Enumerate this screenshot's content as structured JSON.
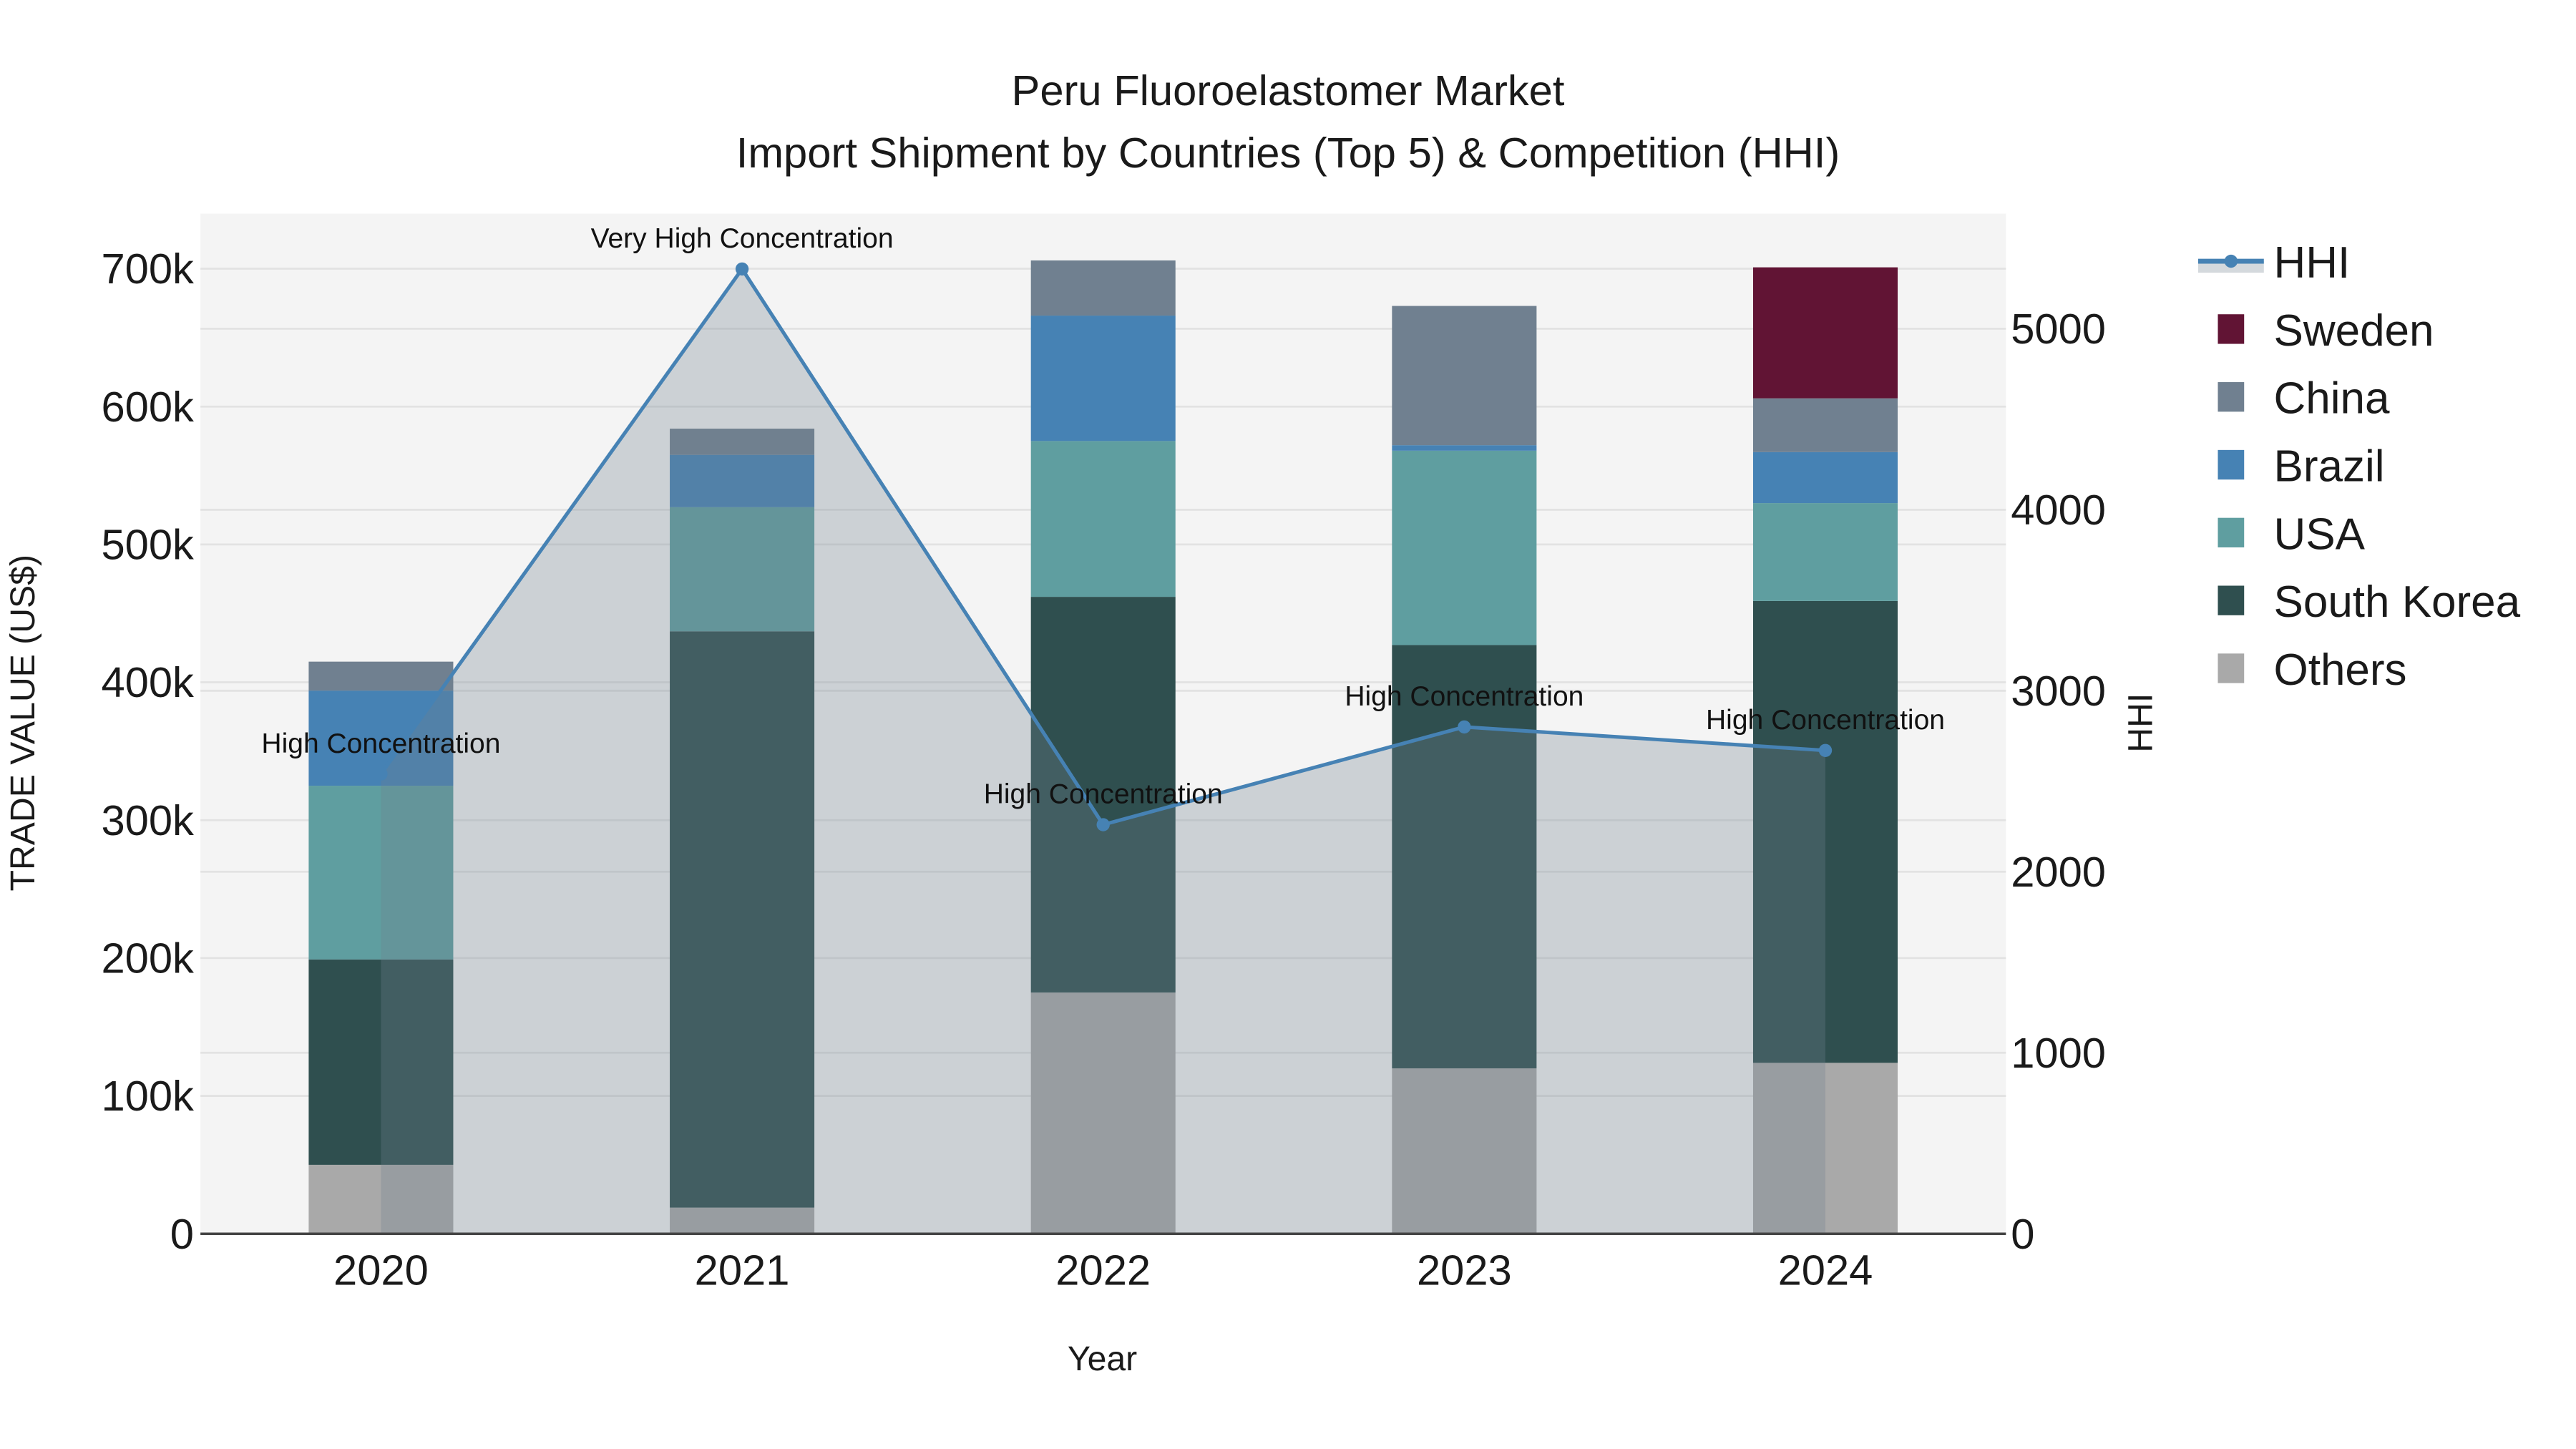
{
  "chart_data": {
    "type": "bar",
    "stacked": true,
    "title": "Peru Fluoroelastomer Market",
    "subtitle": "Import Shipment by Countries (Top 5) & Competition (HHI)",
    "xlabel": "Year",
    "ylabel": "TRADE VALUE (US$)",
    "y2label": "HHI",
    "categories": [
      "2020",
      "2021",
      "2022",
      "2023",
      "2024"
    ],
    "ylim": [
      0,
      740000
    ],
    "y_ticks": [
      0,
      100000,
      200000,
      300000,
      400000,
      500000,
      600000,
      700000
    ],
    "y_tick_labels": [
      "0",
      "100k",
      "200k",
      "300k",
      "400k",
      "500k",
      "600k",
      "700k"
    ],
    "y2lim": [
      0,
      5636
    ],
    "y2_ticks": [
      0,
      1000,
      2000,
      3000,
      4000,
      5000
    ],
    "y2_tick_labels": [
      "0",
      "1000",
      "2000",
      "3000",
      "4000",
      "5000"
    ],
    "grid": true,
    "legend_position": "right",
    "series": [
      {
        "name": "Others",
        "color": "#A9A9A9",
        "values": [
          50000,
          19000,
          175000,
          120000,
          124000
        ]
      },
      {
        "name": "South Korea",
        "color": "#2F4F4F",
        "values": [
          149000,
          418000,
          287000,
          307000,
          335000
        ]
      },
      {
        "name": "USA",
        "color": "#5F9EA0",
        "values": [
          126000,
          90000,
          113000,
          141000,
          71000
        ]
      },
      {
        "name": "Brazil",
        "color": "#4682B4",
        "values": [
          69000,
          38000,
          91000,
          4000,
          37000
        ]
      },
      {
        "name": "China",
        "color": "#708090",
        "values": [
          21000,
          19000,
          40000,
          101000,
          39000
        ]
      },
      {
        "name": "Sweden",
        "color": "#611434",
        "values": [
          0,
          0,
          0,
          0,
          95000
        ]
      }
    ],
    "line_series": {
      "name": "HHI",
      "axis": "right",
      "color": "#4682B4",
      "fill_color": "rgba(112,128,144,0.3)",
      "values": [
        2540,
        5330,
        2260,
        2800,
        2670
      ],
      "annotations": [
        "High Concentration",
        "Very High Concentration",
        "High Concentration",
        "High Concentration",
        "High Concentration"
      ]
    }
  },
  "legend": {
    "items": [
      {
        "label": "HHI",
        "color": "#4682B4",
        "kind": "line"
      },
      {
        "label": "Sweden",
        "color": "#611434",
        "kind": "box"
      },
      {
        "label": "China",
        "color": "#708090",
        "kind": "box"
      },
      {
        "label": "Brazil",
        "color": "#4682B4",
        "kind": "box"
      },
      {
        "label": "USA",
        "color": "#5F9EA0",
        "kind": "box"
      },
      {
        "label": "South Korea",
        "color": "#2F4F4F",
        "kind": "box"
      },
      {
        "label": "Others",
        "color": "#A9A9A9",
        "kind": "box"
      }
    ]
  },
  "colors": {
    "plot_bg": "#F4F4F4",
    "grid": "#E2E2E2",
    "axis_line": "#444444",
    "paper_bg": "#FFFFFF"
  }
}
